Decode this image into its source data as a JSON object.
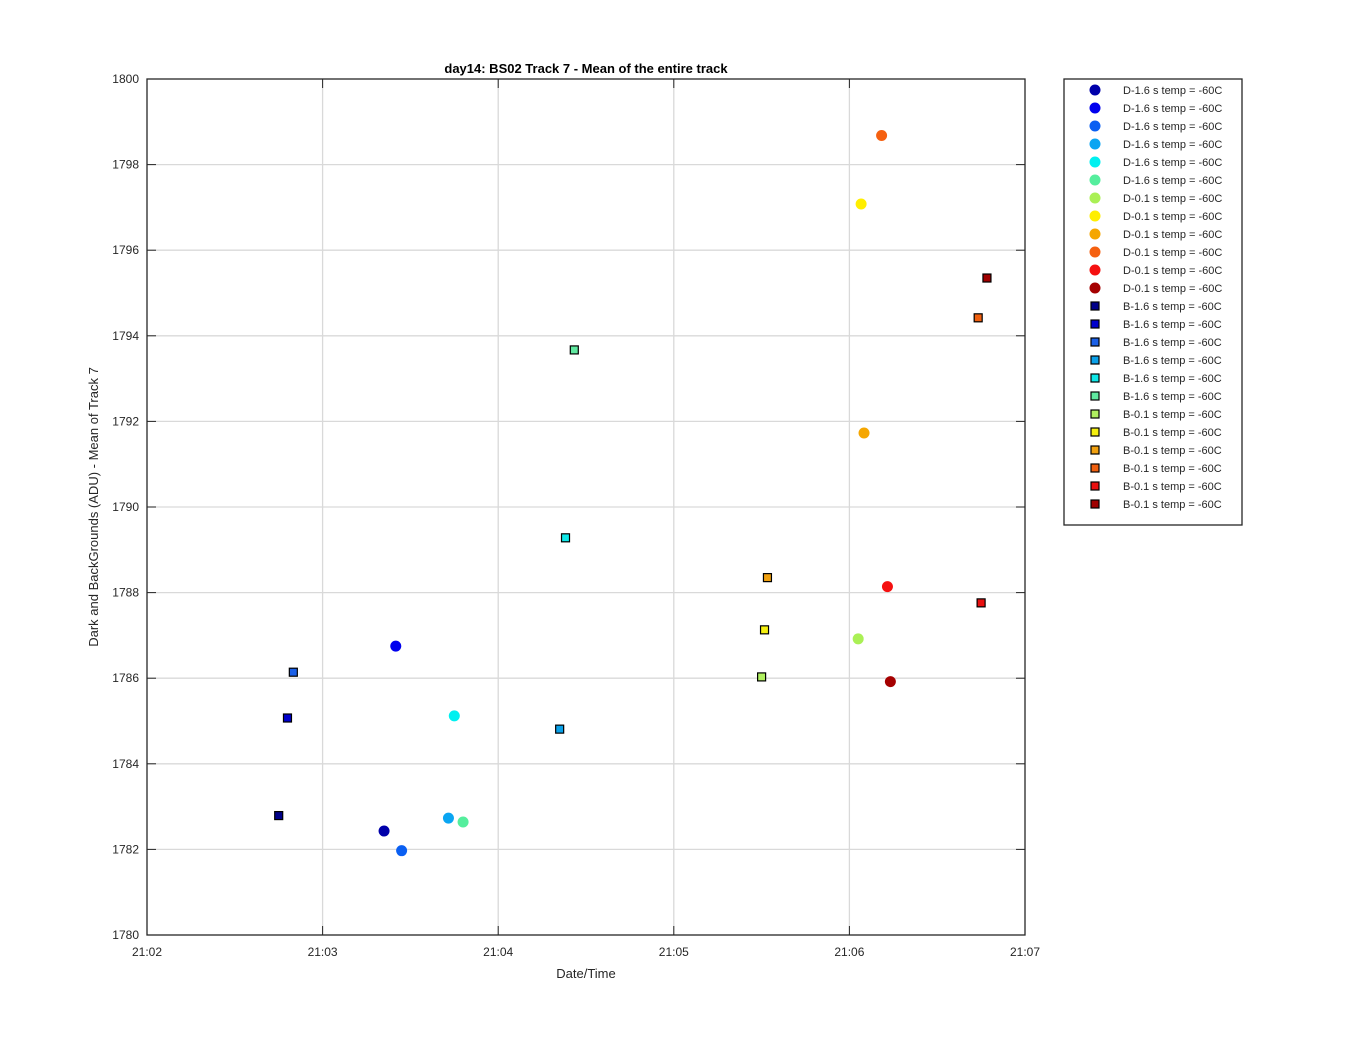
{
  "chart_data": {
    "type": "scatter",
    "title": "day14: BS02  Track 7 - Mean of the entire track",
    "xlabel": "Date/Time",
    "ylabel": "Dark and BackGrounds (ADU) - Mean of Track 7",
    "xlim": [
      "21:02",
      "21:07"
    ],
    "ylim": [
      1780,
      1800
    ],
    "x_ticks": [
      "21:02",
      "21:03",
      "21:04",
      "21:05",
      "21:06",
      "21:07"
    ],
    "y_ticks": [
      1780,
      1782,
      1784,
      1786,
      1788,
      1790,
      1792,
      1794,
      1796,
      1798,
      1800
    ],
    "grid": true,
    "legend_position": "outside-top-right",
    "series": [
      {
        "name": "D-1.6 s temp = -60C",
        "marker": "circle",
        "color": "#0000aa",
        "points": [
          {
            "x": "21:03:21",
            "y": 1782.43
          }
        ]
      },
      {
        "name": "D-1.6 s temp = -60C",
        "marker": "circle",
        "color": "#0000ee",
        "points": [
          {
            "x": "21:03:25",
            "y": 1786.75
          }
        ]
      },
      {
        "name": "D-1.6 s temp = -60C",
        "marker": "circle",
        "color": "#0a5ff2",
        "points": [
          {
            "x": "21:03:27",
            "y": 1781.97
          }
        ]
      },
      {
        "name": "D-1.6 s temp = -60C",
        "marker": "circle",
        "color": "#0aa5f2",
        "points": [
          {
            "x": "21:03:43",
            "y": 1782.73
          }
        ]
      },
      {
        "name": "D-1.6 s temp = -60C",
        "marker": "circle",
        "color": "#00f0f0",
        "points": [
          {
            "x": "21:03:45",
            "y": 1785.12
          }
        ]
      },
      {
        "name": "D-1.6 s temp = -60C",
        "marker": "circle",
        "color": "#55ee9d",
        "points": [
          {
            "x": "21:03:48",
            "y": 1782.64
          }
        ]
      },
      {
        "name": "D-0.1 s temp = -60C",
        "marker": "circle",
        "color": "#aaf055",
        "points": [
          {
            "x": "21:06:03",
            "y": 1786.92
          }
        ]
      },
      {
        "name": "D-0.1 s temp = -60C",
        "marker": "circle",
        "color": "#ffee00",
        "points": [
          {
            "x": "21:06:04",
            "y": 1797.08
          }
        ]
      },
      {
        "name": "D-0.1 s temp = -60C",
        "marker": "circle",
        "color": "#f5a600",
        "points": [
          {
            "x": "21:06:05",
            "y": 1791.73
          }
        ]
      },
      {
        "name": "D-0.1 s temp = -60C",
        "marker": "circle",
        "color": "#f56010",
        "points": [
          {
            "x": "21:06:11",
            "y": 1798.68
          }
        ]
      },
      {
        "name": "D-0.1 s temp = -60C",
        "marker": "circle",
        "color": "#f51010",
        "points": [
          {
            "x": "21:06:13",
            "y": 1788.14
          }
        ]
      },
      {
        "name": "D-0.1 s temp = -60C",
        "marker": "circle",
        "color": "#a50000",
        "points": [
          {
            "x": "21:06:14",
            "y": 1785.92
          }
        ]
      },
      {
        "name": "B-1.6 s temp = -60C",
        "marker": "square",
        "color": "#000088",
        "points": [
          {
            "x": "21:02:45",
            "y": 1782.79
          }
        ]
      },
      {
        "name": "B-1.6 s temp = -60C",
        "marker": "square",
        "color": "#0000cc",
        "points": [
          {
            "x": "21:02:48",
            "y": 1785.07
          }
        ]
      },
      {
        "name": "B-1.6 s temp = -60C",
        "marker": "square",
        "color": "#1a60e8",
        "points": [
          {
            "x": "21:02:50",
            "y": 1786.14
          }
        ]
      },
      {
        "name": "B-1.6 s temp = -60C",
        "marker": "square",
        "color": "#0aa0e8",
        "points": [
          {
            "x": "21:04:21",
            "y": 1784.81
          }
        ]
      },
      {
        "name": "B-1.6 s temp = -60C",
        "marker": "square",
        "color": "#10e8e8",
        "points": [
          {
            "x": "21:04:23",
            "y": 1789.28
          }
        ]
      },
      {
        "name": "B-1.6 s temp = -60C",
        "marker": "square",
        "color": "#60e8a0",
        "points": [
          {
            "x": "21:04:26",
            "y": 1793.67
          }
        ]
      },
      {
        "name": "B-0.1 s temp = -60C",
        "marker": "square",
        "color": "#b0f060",
        "points": [
          {
            "x": "21:05:30",
            "y": 1786.03
          }
        ]
      },
      {
        "name": "B-0.1 s temp = -60C",
        "marker": "square",
        "color": "#f5f010",
        "points": [
          {
            "x": "21:05:31",
            "y": 1787.13
          }
        ]
      },
      {
        "name": "B-0.1 s temp = -60C",
        "marker": "square",
        "color": "#f0a010",
        "points": [
          {
            "x": "21:05:32",
            "y": 1788.35
          }
        ]
      },
      {
        "name": "B-0.1 s temp = -60C",
        "marker": "square",
        "color": "#f06010",
        "points": [
          {
            "x": "21:06:44",
            "y": 1794.42
          }
        ]
      },
      {
        "name": "B-0.1 s temp = -60C",
        "marker": "square",
        "color": "#e81010",
        "points": [
          {
            "x": "21:06:45",
            "y": 1787.76
          }
        ]
      },
      {
        "name": "B-0.1 s temp = -60C",
        "marker": "square",
        "color": "#a00000",
        "points": [
          {
            "x": "21:06:47",
            "y": 1795.35
          }
        ]
      }
    ]
  }
}
